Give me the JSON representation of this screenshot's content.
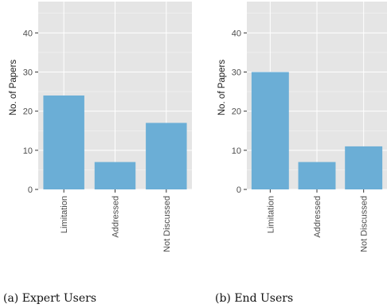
{
  "colors": {
    "bar": "#6baed6",
    "panel": "#e5e5e5",
    "grid": "#ffffff"
  },
  "chart_data": [
    {
      "type": "bar",
      "caption": "(a) Expert Users",
      "categories": [
        "Limitation",
        "Addressed",
        "Not Discussed"
      ],
      "values": [
        24,
        7,
        17
      ],
      "ylabel": "No. of Papers",
      "xlabel": "",
      "ylim": [
        0,
        48
      ],
      "yticks": [
        0,
        10,
        20,
        30,
        40
      ],
      "grid": true
    },
    {
      "type": "bar",
      "caption": "(b) End Users",
      "categories": [
        "Limitation",
        "Addressed",
        "Not Discussed"
      ],
      "values": [
        30,
        7,
        11
      ],
      "ylabel": "No. of Papers",
      "xlabel": "",
      "ylim": [
        0,
        48
      ],
      "yticks": [
        0,
        10,
        20,
        30,
        40
      ],
      "grid": true
    }
  ]
}
